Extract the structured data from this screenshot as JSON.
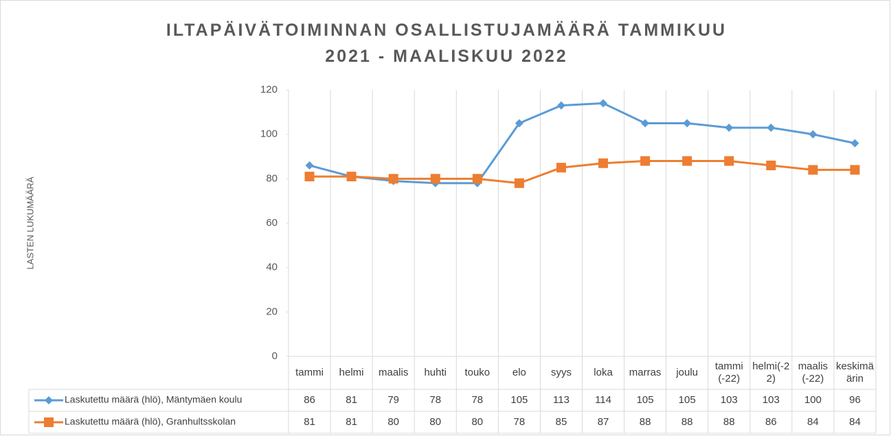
{
  "chart_data": {
    "type": "line",
    "title": "ILTAPÄIVÄTOIMINNAN OSALLISTUJAMÄÄRÄ TAMMIKUU 2021 - MAALISKUU 2022",
    "y_label": "LASTEN LUKUMÄÄRÄ",
    "categories": [
      "tammi",
      "helmi",
      "maalis",
      "huhti",
      "touko",
      "elo",
      "syys",
      "loka",
      "marras",
      "joulu",
      "tammi (-22)",
      "helmi(-22)",
      "maalis (-22)",
      "keskimäärin"
    ],
    "series": [
      {
        "name": "Laskutettu määrä (hlö), Mäntymäen koulu",
        "color": "#5b9bd5",
        "marker": "diamond",
        "values": [
          86,
          81,
          79,
          78,
          78,
          105,
          113,
          114,
          105,
          105,
          103,
          103,
          100,
          96
        ]
      },
      {
        "name": "Laskutettu määrä (hlö), Granhultsskolan",
        "color": "#ed7d31",
        "marker": "square",
        "values": [
          81,
          81,
          80,
          80,
          80,
          78,
          85,
          87,
          88,
          88,
          88,
          86,
          84,
          84
        ]
      }
    ],
    "ylim": [
      0,
      120
    ],
    "yticks": [
      0,
      20,
      40,
      60,
      80,
      100,
      120
    ],
    "data_table": true
  }
}
